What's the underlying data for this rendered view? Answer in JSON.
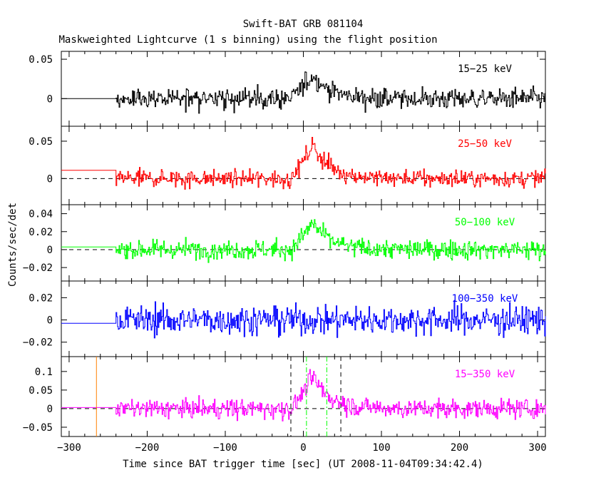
{
  "chart_data": {
    "type": "line",
    "title": "Swift-BAT GRB 081104",
    "subtitle": "Maskweighted Lightcurve (1 s binning) using the flight position",
    "xlabel": "Time since BAT trigger time [sec] (UT 2008-11-04T09:34:42.4)",
    "ylabel": "Counts/sec/det",
    "xlim": [
      -310,
      310
    ],
    "x_ticks": [
      -300,
      -200,
      -100,
      0,
      100,
      200,
      300
    ],
    "data_start": -240,
    "panels": [
      {
        "label": "15−25 keV",
        "color": "#000000",
        "ylim": [
          -0.035,
          0.06
        ],
        "y_ticks": [
          0,
          0.05
        ],
        "y_tick_labels": [
          "0",
          "0.05"
        ],
        "pre_level": 0.0,
        "noise": 0.011,
        "peak": 0.03,
        "zero_line": false
      },
      {
        "label": "25−50 keV",
        "color": "#ff0000",
        "ylim": [
          -0.035,
          0.07
        ],
        "y_ticks": [
          0,
          0.05
        ],
        "y_tick_labels": [
          "0",
          "0.05"
        ],
        "pre_level": 0.011,
        "noise": 0.01,
        "peak": 0.045,
        "zero_line": true
      },
      {
        "label": "50−100 keV",
        "color": "#00ff00",
        "ylim": [
          -0.035,
          0.05
        ],
        "y_ticks": [
          -0.02,
          0,
          0.02,
          0.04
        ],
        "y_tick_labels": [
          "−0.02",
          "0",
          "0.02",
          "0.04"
        ],
        "pre_level": 0.003,
        "noise": 0.009,
        "peak": 0.03,
        "zero_line": true
      },
      {
        "label": "100−350 keV",
        "color": "#0000ff",
        "ylim": [
          -0.033,
          0.035
        ],
        "y_ticks": [
          -0.02,
          0,
          0.02
        ],
        "y_tick_labels": [
          "−0.02",
          "0",
          "0.02"
        ],
        "pre_level": -0.003,
        "noise": 0.011,
        "peak": 0.0,
        "zero_line": false
      },
      {
        "label": "15−350 keV",
        "color": "#ff00ff",
        "ylim": [
          -0.075,
          0.14
        ],
        "y_ticks": [
          -0.05,
          0,
          0.05,
          0.1
        ],
        "y_tick_labels": [
          "−0.05",
          "0",
          "0.05",
          "0.1"
        ],
        "pre_level": 0.003,
        "noise": 0.022,
        "peak": 0.085,
        "zero_line": true
      }
    ],
    "vlines": [
      {
        "x": -265,
        "color": "#ff8000",
        "style": "solid",
        "panel": 4
      },
      {
        "x": -16,
        "color": "#000000",
        "style": "dashed",
        "panel": 4
      },
      {
        "x": 4,
        "color": "#00ff00",
        "style": "dashdot",
        "panel": 4
      },
      {
        "x": 30,
        "color": "#00ff00",
        "style": "dashdot",
        "panel": 4
      },
      {
        "x": 48,
        "color": "#000000",
        "style": "dashed",
        "panel": 4
      }
    ]
  }
}
